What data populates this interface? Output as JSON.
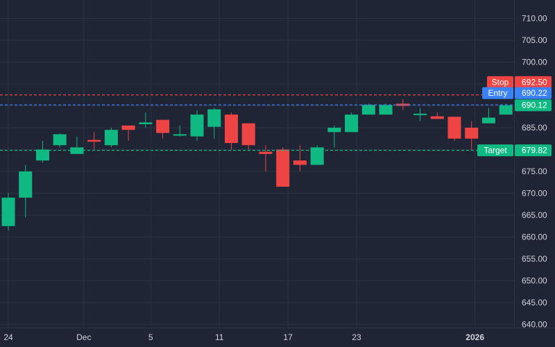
{
  "colors": {
    "background": "#1f2535",
    "grid": "#2b3242",
    "up": "#10b981",
    "down": "#ef4444",
    "stop": "#ef4444",
    "entry": "#3b82f6",
    "target": "#10b981",
    "text": "#d1d4dc"
  },
  "chart_data": {
    "type": "candlestick",
    "title": "",
    "ylim": [
      638,
      716
    ],
    "y_ticks": [
      "710.00",
      "705.00",
      "700.00",
      "695.00",
      "690.00",
      "685.00",
      "680.00",
      "675.00",
      "670.00",
      "665.00",
      "660.00",
      "655.00",
      "650.00",
      "645.00",
      "640.00"
    ],
    "x_ticks": [
      {
        "label": "24",
        "index": 0,
        "bold": false
      },
      {
        "label": "Dec",
        "index": 4.4,
        "bold": false
      },
      {
        "label": "5",
        "index": 8.3,
        "bold": false
      },
      {
        "label": "11",
        "index": 12.3,
        "bold": false
      },
      {
        "label": "17",
        "index": 16.3,
        "bold": false
      },
      {
        "label": "23",
        "index": 20.3,
        "bold": false
      },
      {
        "label": "2026",
        "index": 27.2,
        "bold": true
      }
    ],
    "candles": [
      {
        "o": 662.5,
        "h": 670.0,
        "l": 661.5,
        "c": 669.0
      },
      {
        "o": 669.0,
        "h": 676.5,
        "l": 664.5,
        "c": 675.0
      },
      {
        "o": 677.5,
        "h": 682.0,
        "l": 677.0,
        "c": 680.0
      },
      {
        "o": 681.0,
        "h": 683.7,
        "l": 680.5,
        "c": 683.5
      },
      {
        "o": 679.0,
        "h": 683.0,
        "l": 679.0,
        "c": 680.5
      },
      {
        "o": 682.2,
        "h": 684.0,
        "l": 680.0,
        "c": 681.8
      },
      {
        "o": 681.0,
        "h": 685.0,
        "l": 680.5,
        "c": 684.5
      },
      {
        "o": 685.5,
        "h": 685.5,
        "l": 682.0,
        "c": 684.5
      },
      {
        "o": 685.8,
        "h": 688.5,
        "l": 685.0,
        "c": 686.2
      },
      {
        "o": 686.8,
        "h": 686.8,
        "l": 682.5,
        "c": 683.8
      },
      {
        "o": 683.5,
        "h": 685.5,
        "l": 683.0,
        "c": 683.5
      },
      {
        "o": 683.0,
        "h": 689.0,
        "l": 682.0,
        "c": 688.0
      },
      {
        "o": 685.2,
        "h": 689.5,
        "l": 682.5,
        "c": 689.2
      },
      {
        "o": 688.0,
        "h": 688.5,
        "l": 680.0,
        "c": 681.5
      },
      {
        "o": 686.0,
        "h": 686.0,
        "l": 680.0,
        "c": 681.0
      },
      {
        "o": 679.5,
        "h": 681.0,
        "l": 675.0,
        "c": 679.0
      },
      {
        "o": 680.0,
        "h": 680.5,
        "l": 671.5,
        "c": 671.5
      },
      {
        "o": 677.5,
        "h": 681.0,
        "l": 675.0,
        "c": 676.5
      },
      {
        "o": 676.5,
        "h": 681.0,
        "l": 676.5,
        "c": 680.5
      },
      {
        "o": 684.0,
        "h": 685.5,
        "l": 680.5,
        "c": 685.0
      },
      {
        "o": 684.0,
        "h": 688.5,
        "l": 684.0,
        "c": 688.0
      },
      {
        "o": 688.0,
        "h": 690.5,
        "l": 688.0,
        "c": 690.2
      },
      {
        "o": 688.0,
        "h": 690.5,
        "l": 688.0,
        "c": 690.2
      },
      {
        "o": 690.5,
        "h": 691.5,
        "l": 689.0,
        "c": 690.0
      },
      {
        "o": 688.0,
        "h": 689.5,
        "l": 686.5,
        "c": 688.2
      },
      {
        "o": 687.6,
        "h": 688.5,
        "l": 687.0,
        "c": 687.0
      },
      {
        "o": 687.5,
        "h": 687.5,
        "l": 682.0,
        "c": 682.5
      },
      {
        "o": 685.0,
        "h": 686.5,
        "l": 680.0,
        "c": 682.5
      },
      {
        "o": 686.0,
        "h": 689.5,
        "l": 686.0,
        "c": 687.3
      },
      {
        "o": 688.0,
        "h": 690.5,
        "l": 688.0,
        "c": 690.12
      }
    ],
    "levels": [
      {
        "name": "Stop",
        "value": "692.50",
        "price": 692.5,
        "color": "stop"
      },
      {
        "name": "Entry",
        "value": "690.22",
        "price": 690.22,
        "color": "entry"
      },
      {
        "name": "Target",
        "value": "679.82",
        "price": 679.82,
        "color": "target"
      }
    ],
    "last_price": {
      "value": "690.12",
      "price": 690.12
    }
  }
}
